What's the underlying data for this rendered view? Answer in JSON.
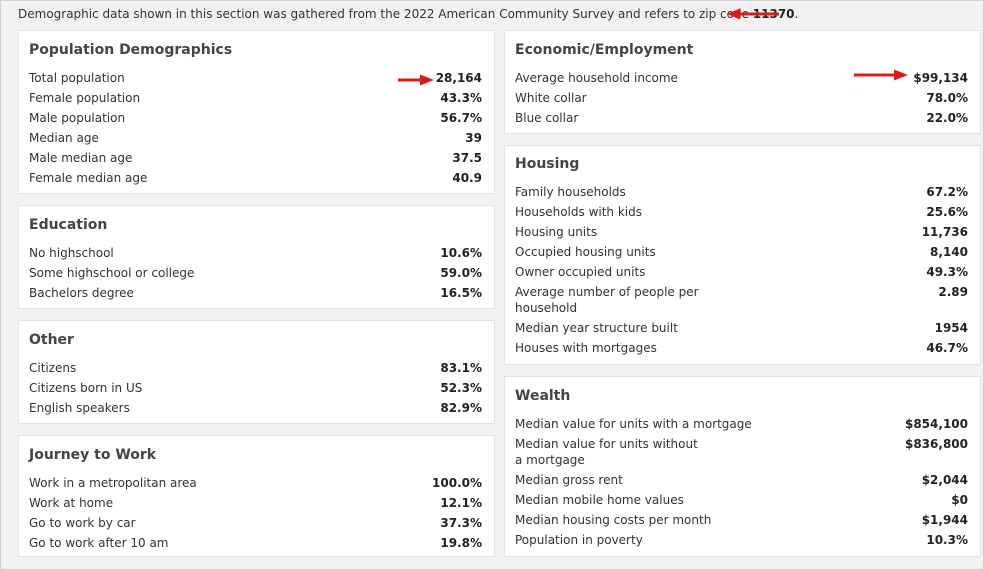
{
  "intro": {
    "text": "Demographic data shown in this section was gathered from the 2022 American Community Survey and refers to zip code ",
    "zip": "11370",
    "end": "."
  },
  "colors": {
    "arrow": "#e0191b",
    "card_bg": "#ffffff",
    "page_bg": "#f2f2f2"
  },
  "population": {
    "title": "Population Demographics",
    "rows": [
      {
        "label": "Total population",
        "value": "28,164"
      },
      {
        "label": "Female population",
        "value": "43.3%"
      },
      {
        "label": "Male population",
        "value": "56.7%"
      },
      {
        "label": "Median age",
        "value": "39"
      },
      {
        "label": "Male median age",
        "value": "37.5"
      },
      {
        "label": "Female median age",
        "value": "40.9"
      }
    ]
  },
  "education": {
    "title": "Education",
    "rows": [
      {
        "label": "No highschool",
        "value": "10.6%"
      },
      {
        "label": "Some highschool or college",
        "value": "59.0%"
      },
      {
        "label": "Bachelors degree",
        "value": "16.5%"
      }
    ]
  },
  "other": {
    "title": "Other",
    "rows": [
      {
        "label": "Citizens",
        "value": "83.1%"
      },
      {
        "label": "Citizens born in US",
        "value": "52.3%"
      },
      {
        "label": "English speakers",
        "value": "82.9%"
      }
    ]
  },
  "journey": {
    "title": "Journey to Work",
    "rows": [
      {
        "label": "Work in a metropolitan area",
        "value": "100.0%"
      },
      {
        "label": "Work at home",
        "value": "12.1%"
      },
      {
        "label": "Go to work by car",
        "value": "37.3%"
      },
      {
        "label": "Go to work after 10 am",
        "value": "19.8%"
      }
    ]
  },
  "economic": {
    "title": "Economic/Employment",
    "rows": [
      {
        "label": "Average household income",
        "value": "$99,134"
      },
      {
        "label": "White collar",
        "value": "78.0%"
      },
      {
        "label": "Blue collar",
        "value": "22.0%"
      }
    ]
  },
  "housing": {
    "title": "Housing",
    "rows": [
      {
        "label": "Family households",
        "value": "67.2%"
      },
      {
        "label": "Households with kids",
        "value": "25.6%"
      },
      {
        "label": "Housing units",
        "value": "11,736"
      },
      {
        "label": "Occupied housing units",
        "value": "8,140"
      },
      {
        "label": "Owner occupied units",
        "value": "49.3%"
      },
      {
        "label": "Average number of people per household",
        "value": "2.89"
      },
      {
        "label": "Median year structure built",
        "value": "1954"
      },
      {
        "label": "Houses with mortgages",
        "value": "46.7%"
      }
    ]
  },
  "wealth": {
    "title": "Wealth",
    "rows": [
      {
        "label": "Median value for units with a mortgage",
        "value": "$854,100"
      },
      {
        "label": "Median value for units without a mortgage",
        "value": "$836,800"
      },
      {
        "label": "Median gross rent",
        "value": "$2,044"
      },
      {
        "label": "Median mobile home values",
        "value": "$0"
      },
      {
        "label": "Median housing costs per month",
        "value": "$1,944"
      },
      {
        "label": "Population in poverty",
        "value": "10.3%"
      }
    ]
  }
}
